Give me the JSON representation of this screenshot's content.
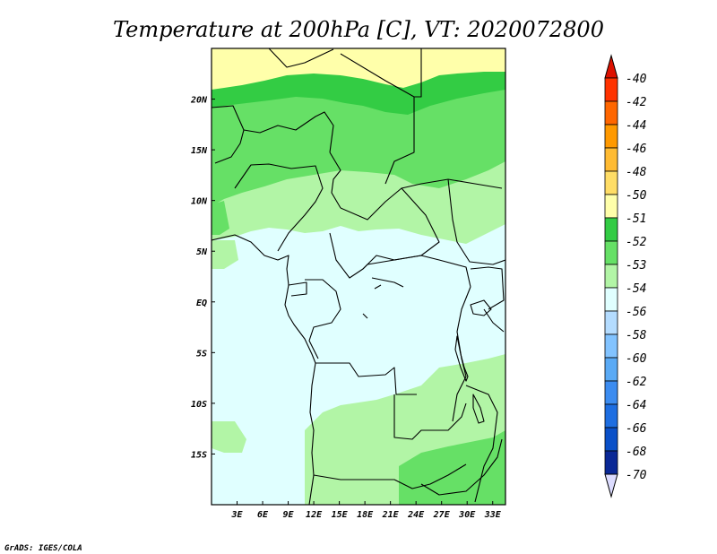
{
  "title": "Temperature at 200hPa [C], VT: 2020072800",
  "credit": "GrADS: IGES/COLA",
  "map": {
    "lat_labels": [
      "20N",
      "15N",
      "10N",
      "5N",
      "EQ",
      "5S",
      "10S",
      "15S"
    ],
    "lat_values": [
      20,
      15,
      10,
      5,
      0,
      -5,
      -10,
      -15
    ],
    "lon_labels": [
      "3E",
      "6E",
      "9E",
      "12E",
      "15E",
      "18E",
      "21E",
      "24E",
      "27E",
      "30E",
      "33E"
    ],
    "lon_values": [
      3,
      6,
      9,
      12,
      15,
      18,
      21,
      24,
      27,
      30,
      33
    ],
    "lon_range": [
      0,
      34.5
    ],
    "lat_range": [
      -20,
      25
    ]
  },
  "colorbar": {
    "labels": [
      "-40",
      "-42",
      "-44",
      "-46",
      "-48",
      "-50",
      "-51",
      "-52",
      "-53",
      "-54",
      "-56",
      "-58",
      "-60",
      "-62",
      "-64",
      "-66",
      "-68",
      "-70"
    ],
    "colors": [
      "#ff3300",
      "#ff6600",
      "#ff9900",
      "#ffbb33",
      "#ffdd66",
      "#ffffaa",
      "#33cc44",
      "#66e066",
      "#b2f5a6",
      "#e0ffff",
      "#b4dcff",
      "#82c3ff",
      "#5aaaf5",
      "#3c8cf0",
      "#1e6ee1",
      "#0a50c8",
      "#0a2896",
      "#f0f0ff"
    ],
    "upper_arrow_color": "#dd1100",
    "lower_arrow_color": "#dcdcff"
  },
  "field_colors": {
    "c_51": "#ffffaa",
    "c_52": "#33cc44",
    "c_53": "#66e066",
    "c_54": "#b2f5a6",
    "c_56": "#e0ffff"
  }
}
